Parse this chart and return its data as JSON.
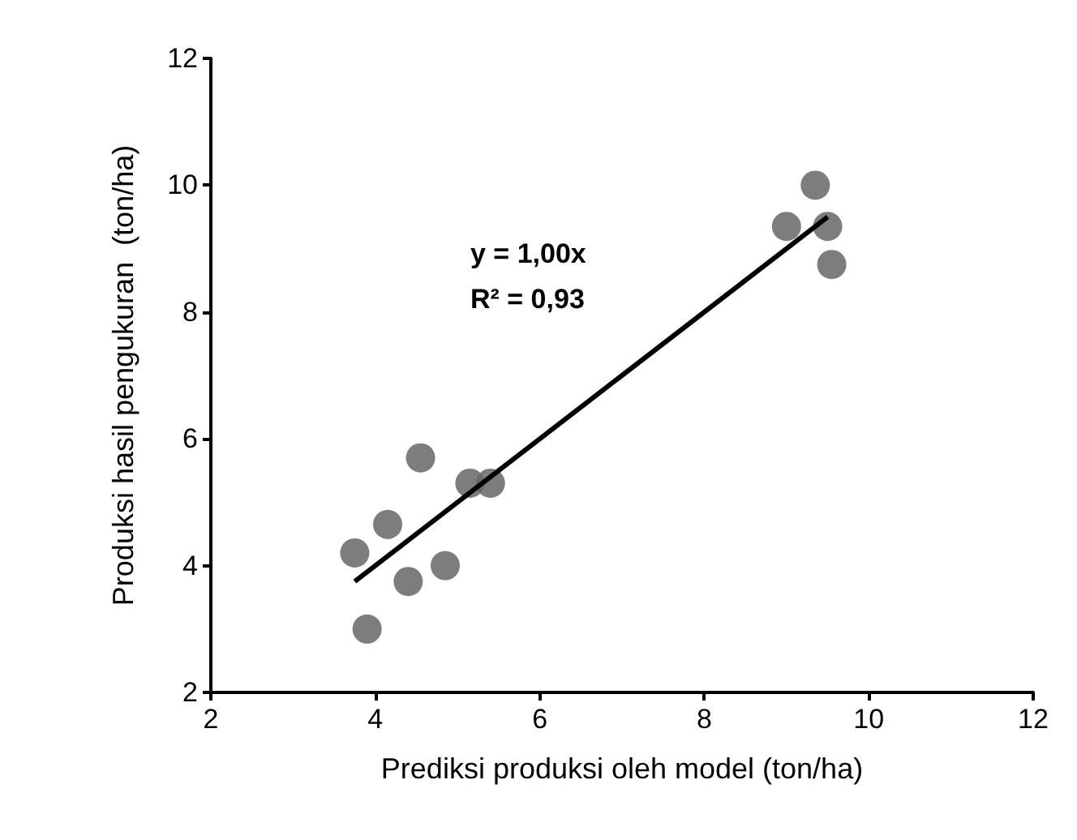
{
  "chart_data": {
    "type": "scatter",
    "xlabel": "Prediksi produksi oleh model (ton/ha)",
    "ylabel": "Produksi hasil pengukuran  (ton/ha)",
    "marker": "circle",
    "grid": false,
    "xlim": [
      2,
      12
    ],
    "xticks": [
      2,
      4,
      6,
      8,
      10,
      12
    ],
    "ylim": [
      2,
      12
    ],
    "yticks": [
      2,
      4,
      6,
      8,
      10,
      12
    ],
    "annotations": [
      "y = 1,00x",
      "R² = 0,93"
    ],
    "series": [
      {
        "color": "#666666",
        "x": [
          3.75,
          3.9,
          4.15,
          4.4,
          4.55,
          4.85,
          5.15,
          5.4,
          9.0,
          9.35,
          9.5,
          9.55
        ],
        "values": [
          4.2,
          3.0,
          4.65,
          3.75,
          5.7,
          4.0,
          5.3,
          5.3,
          9.35,
          10.0,
          9.35,
          8.75
        ]
      },
      {
        "type": "line",
        "color": "#000000",
        "marker": "none",
        "x": [
          3.75,
          9.5
        ],
        "values": [
          3.75,
          9.5
        ]
      }
    ]
  }
}
